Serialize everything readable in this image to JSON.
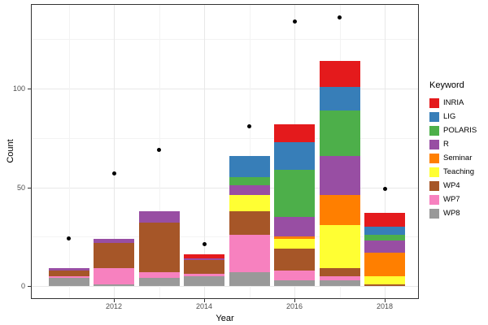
{
  "chart_data": {
    "type": "bar",
    "stacked": true,
    "xlabel": "Year",
    "ylabel": "Count",
    "legend_title": "Keyword",
    "legend_position": "right",
    "x": [
      2011,
      2012,
      2013,
      2014,
      2015,
      2016,
      2017,
      2018
    ],
    "x_tick_labels": [
      "2012",
      "2014",
      "2016",
      "2018"
    ],
    "x_tick_years": [
      2012,
      2014,
      2016,
      2018
    ],
    "y_ticks": [
      0,
      50,
      100
    ],
    "y_minor_ticks": [
      25,
      75,
      125
    ],
    "ylim": [
      0,
      141
    ],
    "grid": true,
    "series": [
      {
        "name": "INRIA",
        "color": "#E41A1C",
        "values": [
          0,
          0,
          0,
          2,
          0,
          9,
          13,
          7
        ]
      },
      {
        "name": "LIG",
        "color": "#377EB8",
        "values": [
          0,
          0,
          0,
          0,
          11,
          14,
          12,
          4
        ]
      },
      {
        "name": "POLARIS",
        "color": "#4DAF4A",
        "values": [
          0,
          0,
          0,
          0,
          4,
          24,
          23,
          3
        ]
      },
      {
        "name": "R",
        "color": "#984EA3",
        "values": [
          1,
          2,
          6,
          1,
          5,
          10,
          20,
          6
        ]
      },
      {
        "name": "Seminar",
        "color": "#FF7F00",
        "values": [
          0,
          0,
          0,
          0,
          0,
          1,
          15,
          12
        ]
      },
      {
        "name": "Teaching",
        "color": "#FFFF33",
        "values": [
          0,
          0,
          0,
          0,
          8,
          5,
          22,
          4
        ]
      },
      {
        "name": "WP4",
        "color": "#A65628",
        "values": [
          3,
          13,
          25,
          7,
          12,
          11,
          4,
          1
        ]
      },
      {
        "name": "WP7",
        "color": "#F781BF",
        "values": [
          1,
          8,
          3,
          1,
          19,
          5,
          2,
          0
        ]
      },
      {
        "name": "WP8",
        "color": "#999999",
        "values": [
          4,
          1,
          4,
          5,
          7,
          3,
          3,
          0
        ]
      }
    ],
    "points": {
      "name": "scatter-overlay",
      "color": "#000000",
      "values": [
        24,
        57,
        69,
        21,
        81,
        134,
        136,
        49
      ]
    }
  }
}
